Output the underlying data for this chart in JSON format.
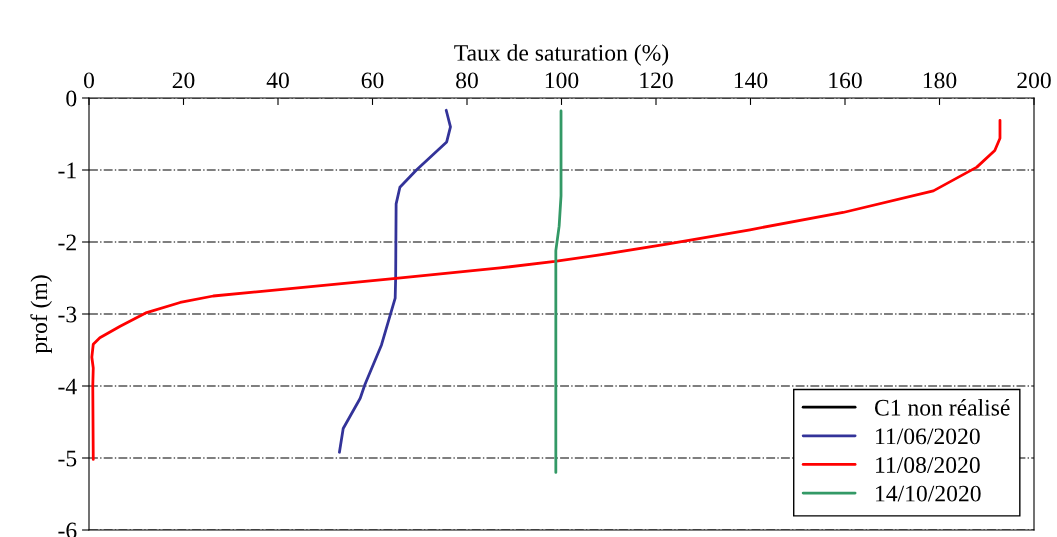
{
  "chart_data": {
    "type": "line",
    "xlabel": "Taux de saturation (%)",
    "ylabel": "prof (m)",
    "xlim": [
      0,
      200
    ],
    "xticks": [
      0,
      20,
      40,
      60,
      80,
      100,
      120,
      140,
      160,
      180,
      200
    ],
    "ylim": [
      -6,
      0
    ],
    "yticks": [
      0,
      -1,
      -2,
      -3,
      -4,
      -5,
      -6
    ],
    "grid": "y",
    "legend": "bottom right",
    "line_style": "solid",
    "marker": "none",
    "series": [
      {
        "name": "C1 non réalisé",
        "color": "#000000"
      },
      {
        "name": "11/06/2020",
        "color": "#333399",
        "x": [
          75.6,
          76.5,
          75.7,
          69.3,
          65.8,
          65,
          64.9,
          64.8,
          61.9,
          58.4,
          57.4,
          53.8,
          53
        ],
        "values": [
          -0.17,
          -0.4,
          -0.61,
          -1.0,
          -1.24,
          -1.47,
          -2.5,
          -2.78,
          -3.43,
          -3.98,
          -4.17,
          -4.59,
          -4.92
        ]
      },
      {
        "name": "11/08/2020",
        "color": "#ff0000",
        "x": [
          192.8,
          192.8,
          191.7,
          187.9,
          178.7,
          159.6,
          139.9,
          122.3,
          108.1,
          98.6,
          87,
          64.4,
          40.4,
          26.3,
          19.3,
          12.2,
          6.6,
          2.3,
          0.9,
          0.6,
          0.9,
          0.8,
          0.9
        ],
        "values": [
          -0.31,
          -0.56,
          -0.73,
          -0.96,
          -1.29,
          -1.59,
          -1.83,
          -2.03,
          -2.18,
          -2.27,
          -2.36,
          -2.51,
          -2.66,
          -2.75,
          -2.84,
          -2.98,
          -3.17,
          -3.33,
          -3.42,
          -3.6,
          -3.75,
          -4.0,
          -5.02
        ]
      },
      {
        "name": "14/10/2020",
        "color": "#339966",
        "x": [
          99.9,
          99.9,
          99.5,
          98.8,
          98.8
        ],
        "values": [
          -0.18,
          -1.36,
          -1.78,
          -2.12,
          -5.2
        ]
      }
    ]
  }
}
